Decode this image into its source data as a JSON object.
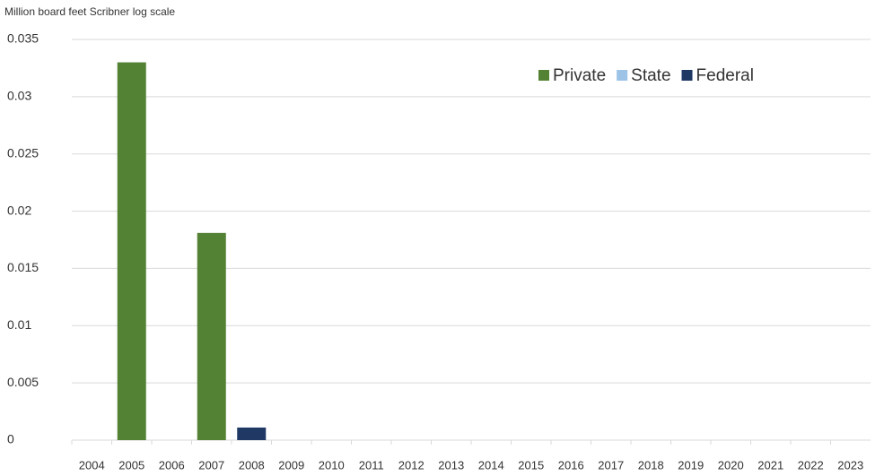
{
  "chart_data": {
    "type": "bar",
    "y_axis_label": "Million board feet Scribner log scale",
    "categories": [
      "2004",
      "2005",
      "2006",
      "2007",
      "2008",
      "2009",
      "2010",
      "2011",
      "2012",
      "2013",
      "2014",
      "2015",
      "2016",
      "2017",
      "2018",
      "2019",
      "2020",
      "2021",
      "2022",
      "2023"
    ],
    "series": [
      {
        "name": "Private",
        "color": "#548235",
        "values": [
          0,
          0.033,
          0,
          0.0181,
          0,
          0,
          0,
          0,
          0,
          0,
          0,
          0,
          0,
          0,
          0,
          0,
          0,
          0,
          0,
          0
        ]
      },
      {
        "name": "State",
        "color": "#9dc3e6",
        "values": [
          0,
          0,
          0,
          0,
          0,
          0,
          0,
          0,
          0,
          0,
          0,
          0,
          0,
          0,
          0,
          0,
          0,
          0,
          0,
          0
        ]
      },
      {
        "name": "Federal",
        "color": "#1f3864",
        "values": [
          0,
          0,
          0,
          0,
          0.0011,
          0,
          0,
          0,
          0,
          0,
          0,
          0,
          0,
          0,
          0,
          0,
          0,
          0,
          0,
          0
        ]
      }
    ],
    "ylim": [
      0,
      0.035
    ],
    "yticks": [
      0,
      0.005,
      0.01,
      0.015,
      0.02,
      0.025,
      0.03,
      0.035
    ],
    "grid": true,
    "legend": "top-right"
  }
}
